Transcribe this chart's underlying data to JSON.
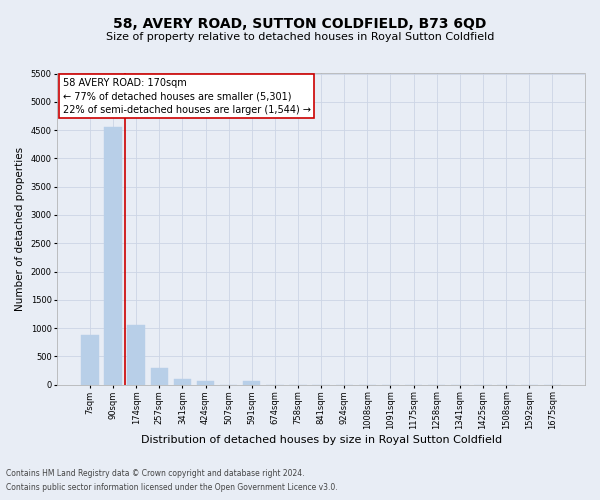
{
  "title": "58, AVERY ROAD, SUTTON COLDFIELD, B73 6QD",
  "subtitle": "Size of property relative to detached houses in Royal Sutton Coldfield",
  "xlabel": "Distribution of detached houses by size in Royal Sutton Coldfield",
  "ylabel": "Number of detached properties",
  "footnote1": "Contains HM Land Registry data © Crown copyright and database right 2024.",
  "footnote2": "Contains public sector information licensed under the Open Government Licence v3.0.",
  "categories": [
    "7sqm",
    "90sqm",
    "174sqm",
    "257sqm",
    "341sqm",
    "424sqm",
    "507sqm",
    "591sqm",
    "674sqm",
    "758sqm",
    "841sqm",
    "924sqm",
    "1008sqm",
    "1091sqm",
    "1175sqm",
    "1258sqm",
    "1341sqm",
    "1425sqm",
    "1508sqm",
    "1592sqm",
    "1675sqm"
  ],
  "values": [
    880,
    4560,
    1060,
    305,
    95,
    75,
    0,
    75,
    0,
    0,
    0,
    0,
    0,
    0,
    0,
    0,
    0,
    0,
    0,
    0,
    0
  ],
  "bar_color": "#b8cfe8",
  "bar_edge_color": "#b8cfe8",
  "highlight_line_color": "#cc0000",
  "annotation_line1": "58 AVERY ROAD: 170sqm",
  "annotation_line2": "← 77% of detached houses are smaller (5,301)",
  "annotation_line3": "22% of semi-detached houses are larger (1,544) →",
  "annotation_box_color": "#ffffff",
  "annotation_box_edge_color": "#cc0000",
  "ylim": [
    0,
    5500
  ],
  "yticks": [
    0,
    500,
    1000,
    1500,
    2000,
    2500,
    3000,
    3500,
    4000,
    4500,
    5000,
    5500
  ],
  "grid_color": "#ccd5e5",
  "bg_color": "#e8edf5",
  "plot_bg_color": "#e8edf5",
  "title_fontsize": 10,
  "subtitle_fontsize": 8,
  "tick_fontsize": 6,
  "ylabel_fontsize": 7.5,
  "xlabel_fontsize": 8,
  "annotation_fontsize": 7,
  "footnote_fontsize": 5.5
}
